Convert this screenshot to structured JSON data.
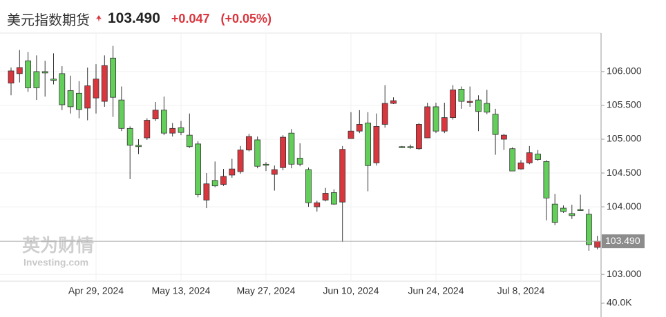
{
  "header": {
    "title": "美元指数期货",
    "price": "103.490",
    "change": "+0.047",
    "change_pct": "(+0.05%)"
  },
  "watermark": {
    "cn": "英为财情",
    "en": "Investing.com"
  },
  "chart_data": {
    "type": "candlestick",
    "categories": [
      null,
      null,
      null,
      null,
      null,
      null,
      null,
      null,
      null,
      null,
      "Apr 29, 2024",
      null,
      null,
      null,
      null,
      null,
      null,
      null,
      null,
      null,
      "May 13, 2024",
      null,
      null,
      null,
      null,
      null,
      null,
      null,
      null,
      null,
      "May 27, 2024",
      null,
      null,
      null,
      null,
      null,
      null,
      null,
      null,
      null,
      "Jun 10, 2024",
      null,
      null,
      null,
      null,
      null,
      null,
      null,
      null,
      null,
      "Jun 24, 2024",
      null,
      null,
      null,
      null,
      null,
      null,
      null,
      null,
      null,
      "Jul 8, 2024",
      null,
      null,
      null,
      null,
      null,
      null,
      null,
      null,
      null
    ],
    "open": [
      105.83,
      105.97,
      106.16,
      106.0,
      106.0,
      105.89,
      105.97,
      105.72,
      105.68,
      105.46,
      105.61,
      105.56,
      106.2,
      105.58,
      105.16,
      104.91,
      105.02,
      105.3,
      105.43,
      105.09,
      105.17,
      105.06,
      104.93,
      104.1,
      104.39,
      104.33,
      104.47,
      104.52,
      104.84,
      104.99,
      104.63,
      104.48,
      104.58,
      105.09,
      104.72,
      104.55,
      104.0,
      104.1,
      104.21,
      104.07,
      105.01,
      105.12,
      105.24,
      104.65,
      105.22,
      105.53,
      104.89,
      104.89,
      104.86,
      105.02,
      105.48,
      105.12,
      105.32,
      105.74,
      105.55,
      105.58,
      105.53,
      105.37,
      105.0,
      104.86,
      104.56,
      104.65,
      104.78,
      104.67,
      104.04,
      103.98,
      103.9,
      103.96,
      103.89,
      103.4
    ],
    "high": [
      106.06,
      106.32,
      106.29,
      106.24,
      106.16,
      106.27,
      106.08,
      105.94,
      105.86,
      106.06,
      106.11,
      106.24,
      106.38,
      105.78,
      105.19,
      105.0,
      105.31,
      105.55,
      105.63,
      105.24,
      105.27,
      105.38,
      104.97,
      104.5,
      104.67,
      104.56,
      104.71,
      104.9,
      105.08,
      105.04,
      104.66,
      104.61,
      105.06,
      105.15,
      104.94,
      104.58,
      104.09,
      104.28,
      104.26,
      104.9,
      105.4,
      105.43,
      105.4,
      105.38,
      105.8,
      105.62,
      104.9,
      104.92,
      105.24,
      105.54,
      105.54,
      105.54,
      105.8,
      105.78,
      105.78,
      105.65,
      105.73,
      105.45,
      105.08,
      104.88,
      104.69,
      104.9,
      104.84,
      104.69,
      104.19,
      104.02,
      104.03,
      104.18,
      103.97,
      103.57
    ],
    "low": [
      105.65,
      105.84,
      105.7,
      105.58,
      105.63,
      105.81,
      105.43,
      105.38,
      105.31,
      105.28,
      105.38,
      105.48,
      105.33,
      105.12,
      104.41,
      104.78,
      104.99,
      105.27,
      105.06,
      105.04,
      105.06,
      104.87,
      104.14,
      103.98,
      104.29,
      104.31,
      104.43,
      104.49,
      104.82,
      104.57,
      104.53,
      104.24,
      104.54,
      104.57,
      104.6,
      104.0,
      103.93,
      104.08,
      104.03,
      103.48,
      105.01,
      105.09,
      104.23,
      104.61,
      105.17,
      105.52,
      104.87,
      104.86,
      104.84,
      105.02,
      105.09,
      105.09,
      105.29,
      105.45,
      105.48,
      105.12,
      105.37,
      104.77,
      104.84,
      104.53,
      104.55,
      104.63,
      104.68,
      103.8,
      103.73,
      103.91,
      103.82,
      103.94,
      103.35,
      103.37
    ],
    "close": [
      106.01,
      106.06,
      105.76,
      105.76,
      105.98,
      105.87,
      105.51,
      105.48,
      105.44,
      105.79,
      105.89,
      106.09,
      105.62,
      105.16,
      104.91,
      104.89,
      105.28,
      105.43,
      105.09,
      105.16,
      105.1,
      104.89,
      104.18,
      104.34,
      104.31,
      104.45,
      104.56,
      104.84,
      105.04,
      104.6,
      104.62,
      104.55,
      105.03,
      104.63,
      104.63,
      104.06,
      104.06,
      104.2,
      104.04,
      104.85,
      105.12,
      105.22,
      104.61,
      105.19,
      105.53,
      105.57,
      104.88,
      104.88,
      105.22,
      105.48,
      105.12,
      105.32,
      105.73,
      105.56,
      105.56,
      105.41,
      105.4,
      105.07,
      105.06,
      104.53,
      104.65,
      104.8,
      104.7,
      104.13,
      103.77,
      103.93,
      103.87,
      103.95,
      103.44,
      103.49
    ],
    "up_color": "#d9363e",
    "down_color": "#63cf5a",
    "ylim": [
      102.9,
      106.57
    ],
    "yticks": [
      {
        "value": 103,
        "label": "103.000"
      },
      {
        "value": 104,
        "label": "104.000"
      },
      {
        "value": 104.5,
        "label": "104.500"
      },
      {
        "value": 105,
        "label": "105.000"
      },
      {
        "value": 105.5,
        "label": "105.500"
      },
      {
        "value": 106,
        "label": "106.000"
      }
    ],
    "last_price": {
      "value": 103.49,
      "label": "103.490"
    },
    "volume_ticks": [
      {
        "value": 40000,
        "label": "40.0K"
      }
    ],
    "grid": true
  }
}
